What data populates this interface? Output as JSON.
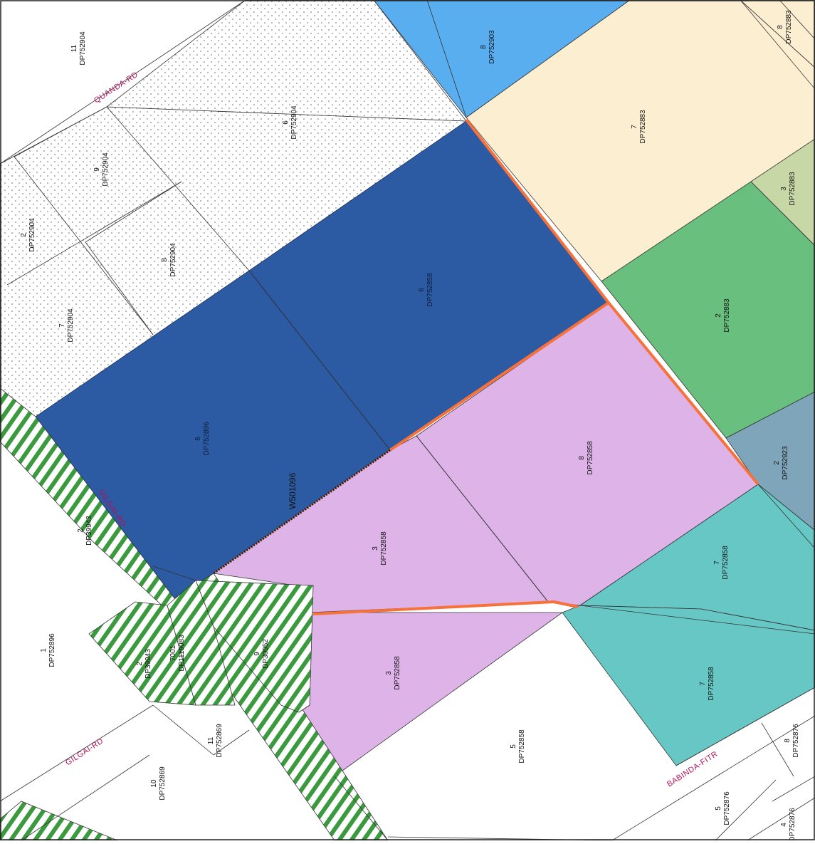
{
  "map": {
    "roads": {
      "quanda": "QUANDA-RD",
      "gilgai_upper": "GILGAI-RD",
      "gilgai_lower": "GILGAI-RD",
      "babinda": "BABINDA-FITR"
    },
    "annotation": "W501096",
    "colors": {
      "blue_lots": "#2c5aa3",
      "purple_lots": "#ddb3e8",
      "cream_lot": "#fcefd1",
      "green_lot": "#69bf7d",
      "light_green_lot": "#c7d8a6",
      "light_blue_lot": "#59aef0",
      "teal_lots": "#66c7c4",
      "slate_lot": "#7fa5ba",
      "boundary_orange": "#f7723b",
      "hatch_green": "#3b9a3e",
      "road_text": "#b0125b"
    },
    "lots": [
      {
        "id": "l11_904",
        "num": "11",
        "dp": "DP752904"
      },
      {
        "id": "l8_903",
        "num": "8",
        "dp": "DP752903"
      },
      {
        "id": "l8_883",
        "num": "8",
        "dp": "DP752883"
      },
      {
        "id": "l7_883",
        "num": "7",
        "dp": "DP752883"
      },
      {
        "id": "l6_904",
        "num": "6",
        "dp": "DP752904"
      },
      {
        "id": "l9_904",
        "num": "9",
        "dp": "DP752904"
      },
      {
        "id": "l2_904",
        "num": "2",
        "dp": "DP752904"
      },
      {
        "id": "l8_904",
        "num": "8",
        "dp": "DP752904"
      },
      {
        "id": "l7_904",
        "num": "7",
        "dp": "DP752904"
      },
      {
        "id": "l3_883",
        "num": "3",
        "dp": "DP752883"
      },
      {
        "id": "l6_858",
        "num": "6",
        "dp": "DP752858"
      },
      {
        "id": "l2_883",
        "num": "2",
        "dp": "DP752883"
      },
      {
        "id": "l6_896",
        "num": "6",
        "dp": "DP752896"
      },
      {
        "id": "l8_858",
        "num": "8",
        "dp": "DP752858"
      },
      {
        "id": "l2_923",
        "num": "2",
        "dp": "DP752923"
      },
      {
        "id": "l2_39943a",
        "num": "2",
        "dp": "DP39943"
      },
      {
        "id": "l3_858a",
        "num": "3",
        "dp": "DP752858"
      },
      {
        "id": "l7_858a",
        "num": "7",
        "dp": "DP752858"
      },
      {
        "id": "l1_896",
        "num": "1",
        "dp": "DP752896"
      },
      {
        "id": "l9_30952",
        "num": "9",
        "dp": "DP30952"
      },
      {
        "id": "l7001",
        "num": "7001",
        "dp": "DP1119083"
      },
      {
        "id": "l2_39943b",
        "num": "2",
        "dp": "DP39943"
      },
      {
        "id": "l3_858b",
        "num": "3",
        "dp": "DP752858"
      },
      {
        "id": "l7_858b",
        "num": "7",
        "dp": "DP752858"
      },
      {
        "id": "l11_869",
        "num": "11",
        "dp": "DP752869"
      },
      {
        "id": "l5_858",
        "num": "5",
        "dp": "DP752858"
      },
      {
        "id": "l10_869",
        "num": "10",
        "dp": "DP752869"
      },
      {
        "id": "l8_876",
        "num": "8",
        "dp": "DP752876"
      },
      {
        "id": "l5_876",
        "num": "5",
        "dp": "DP752876"
      },
      {
        "id": "l4_876",
        "num": "4",
        "dp": "DP752876"
      }
    ]
  }
}
